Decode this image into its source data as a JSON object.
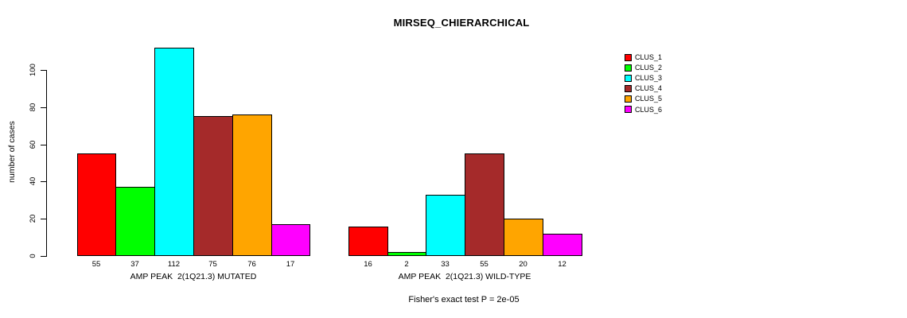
{
  "chart_data": {
    "type": "bar",
    "title": "MIRSEQ_CHIERARCHICAL",
    "ylabel": "number of cases",
    "ylim": [
      0,
      112
    ],
    "yticks": [
      0,
      20,
      40,
      60,
      80,
      100
    ],
    "grid": false,
    "legend_position": "top-right",
    "series_names": [
      "CLUS_1",
      "CLUS_2",
      "CLUS_3",
      "CLUS_4",
      "CLUS_5",
      "CLUS_6"
    ],
    "colors": [
      "#ff0000",
      "#00ff00",
      "#00ffff",
      "#a52a2a",
      "#ffa500",
      "#ff00ff"
    ],
    "groups": [
      {
        "label": "AMP PEAK  2(1Q21.3) MUTATED",
        "values": [
          55,
          37,
          112,
          75,
          76,
          17
        ]
      },
      {
        "label": "AMP PEAK  2(1Q21.3) WILD-TYPE",
        "values": [
          16,
          2,
          33,
          55,
          20,
          12
        ]
      }
    ],
    "annotation": "Fisher's exact test P = 2e-05"
  }
}
